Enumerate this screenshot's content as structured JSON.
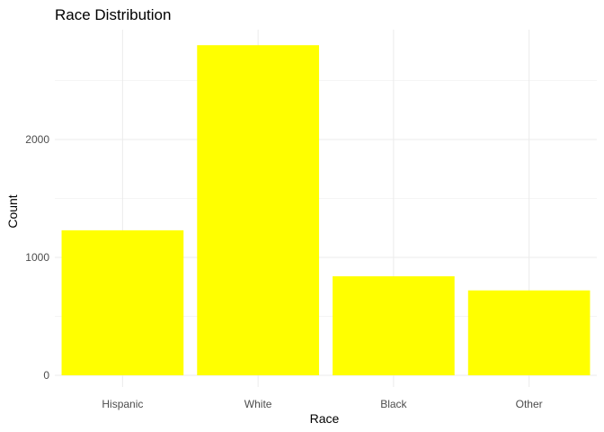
{
  "chart_data": {
    "type": "bar",
    "title": "Race Distribution",
    "xlabel": "Race",
    "ylabel": "Count",
    "categories": [
      "Hispanic",
      "White",
      "Black",
      "Other"
    ],
    "values": [
      1230,
      2800,
      840,
      720
    ],
    "ylim": [
      0,
      2900
    ],
    "yticks": [
      0,
      1000,
      2000
    ],
    "grid": true,
    "bar_color": "#FFFF00"
  }
}
